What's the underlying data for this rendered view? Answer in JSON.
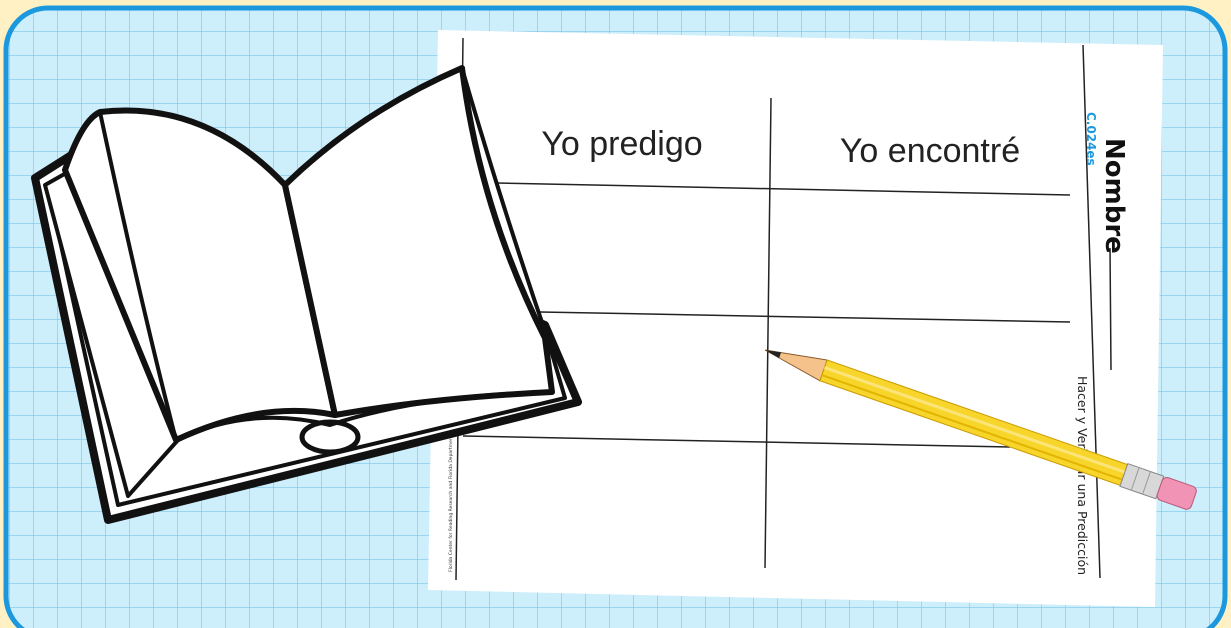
{
  "worksheet": {
    "columns": [
      "Yo predigo",
      "Yo encontré"
    ],
    "name_label": "Nombre",
    "code": "C.024es",
    "activity_title": "Hacer y Verificar una Predicción",
    "footer": "Florida Center for Reading Research and Florida Department of Education (Revised 2008)"
  }
}
